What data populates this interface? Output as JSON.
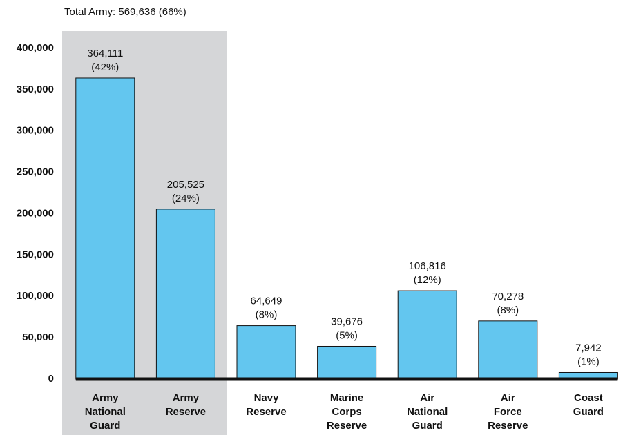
{
  "chart_data": {
    "type": "bar",
    "annotation": "Total Army: 569,636  (66%)",
    "categories": [
      "Army National Guard",
      "Army Reserve",
      "Navy Reserve",
      "Marine Corps Reserve",
      "Air National Guard",
      "Air Force Reserve",
      "Coast Guard"
    ],
    "values": [
      364111,
      205525,
      64649,
      39676,
      106816,
      70278,
      7942
    ],
    "value_labels": [
      "364,111",
      "205,525",
      "64,649",
      "39,676",
      "106,816",
      "70,278",
      "7,942"
    ],
    "shares": [
      42,
      24,
      8,
      5,
      12,
      8,
      1
    ],
    "share_labels": [
      "(42%)",
      "(24%)",
      "(8%)",
      "(5%)",
      "(12%)",
      "(8%)",
      "(1%)"
    ],
    "color": "#63c6ef",
    "ylim": [
      0,
      400000
    ],
    "yticks": [
      0,
      {
        "value": 50000,
        "label": "50,000"
      },
      {
        "value": 100000,
        "label": "100,000"
      },
      {
        "value": 150000,
        "label": "150,000"
      },
      {
        "value": 200000,
        "label": "200,000"
      },
      {
        "value": 250000,
        "label": "250,000"
      },
      {
        "value": 300000,
        "label": "300,000"
      },
      {
        "value": 350000,
        "label": "350,000"
      },
      {
        "value": 400000,
        "label": "400,000"
      }
    ]
  }
}
